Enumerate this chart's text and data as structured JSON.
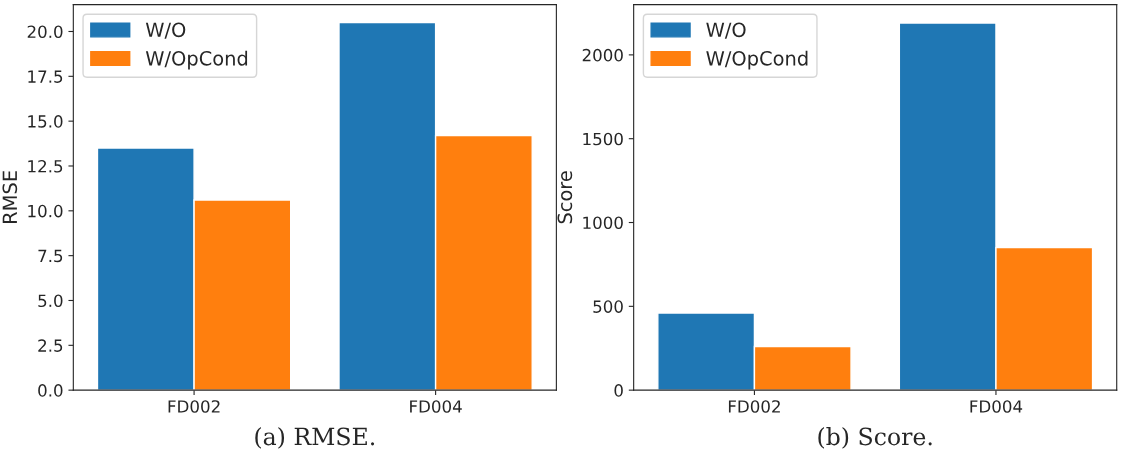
{
  "chart_data": [
    {
      "type": "bar",
      "xlabel": "(a) RMSE.",
      "ylabel": "RMSE",
      "categories": [
        "FD002",
        "FD004"
      ],
      "series": [
        {
          "name": "W/O",
          "color": "#1f77b4",
          "values": [
            13.5,
            20.5
          ]
        },
        {
          "name": "W/OpCond",
          "color": "#ff7f0e",
          "values": [
            10.6,
            14.2
          ]
        }
      ],
      "ylim": [
        0,
        21.5
      ],
      "yticks": [
        {
          "value": 0,
          "label": "0.0"
        },
        {
          "value": 2.5,
          "label": "2.5"
        },
        {
          "value": 5,
          "label": "5.0"
        },
        {
          "value": 7.5,
          "label": "7.5"
        },
        {
          "value": 10,
          "label": "10.0"
        },
        {
          "value": 12.5,
          "label": "12.5"
        },
        {
          "value": 15,
          "label": "15.0"
        },
        {
          "value": 17.5,
          "label": "17.5"
        },
        {
          "value": 20,
          "label": "20.0"
        }
      ],
      "legend": "top left",
      "grid": false
    },
    {
      "type": "bar",
      "xlabel": "(b) Score.",
      "ylabel": "Score",
      "categories": [
        "FD002",
        "FD004"
      ],
      "series": [
        {
          "name": "W/O",
          "color": "#1f77b4",
          "values": [
            460,
            2190
          ]
        },
        {
          "name": "W/OpCond",
          "color": "#ff7f0e",
          "values": [
            260,
            850
          ]
        }
      ],
      "ylim": [
        0,
        2300
      ],
      "yticks": [
        0,
        500,
        1000,
        1500,
        2000
      ],
      "legend": "top left",
      "grid": false
    }
  ]
}
